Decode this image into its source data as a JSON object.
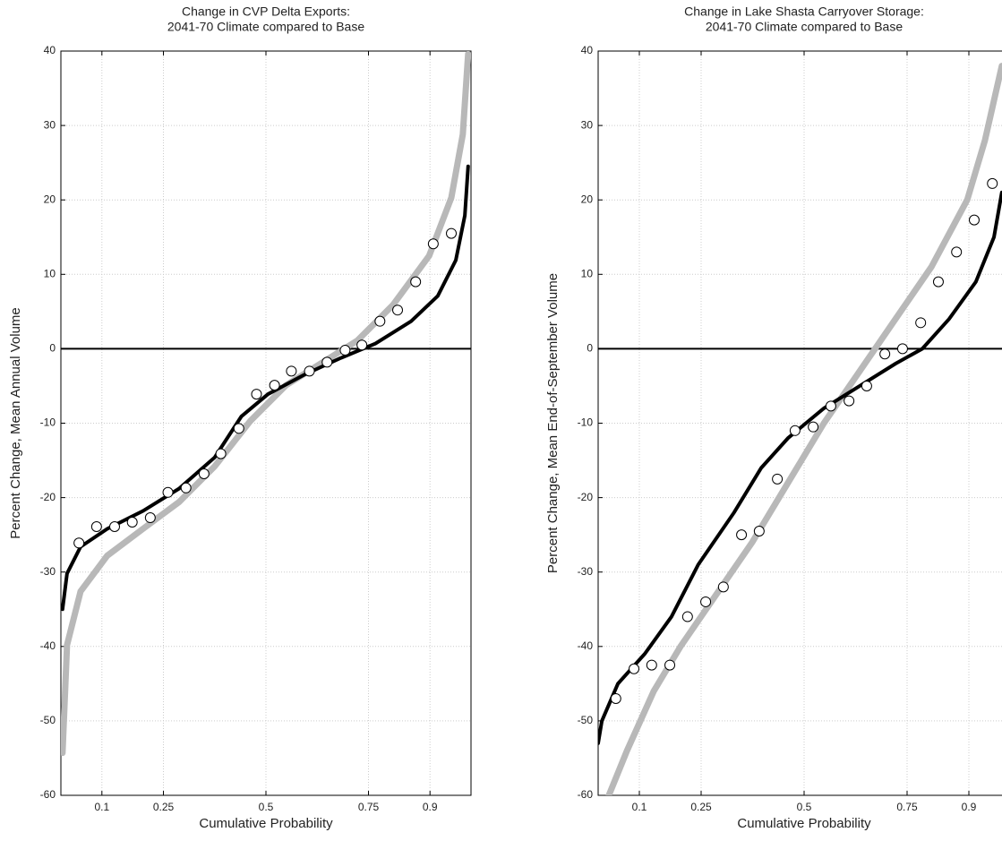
{
  "chart_data": [
    {
      "type": "line",
      "title": [
        "Change in CVP Delta Exports:",
        "2041-70 Climate compared to Base"
      ],
      "xlabel": "Cumulative Probability",
      "ylabel": "Percent Change, Mean Annual Volume",
      "xlim": [
        0,
        1
      ],
      "ylim": [
        -60,
        40
      ],
      "xticks": [
        0.1,
        0.25,
        0.5,
        0.75,
        0.9
      ],
      "yticks": [
        -60,
        -50,
        -40,
        -30,
        -20,
        -10,
        0,
        10,
        20,
        30,
        40
      ],
      "grid": true,
      "hline": 0,
      "series": [
        {
          "style": "line",
          "color": "#b8b8b8",
          "x": [
            0.004,
            0.015,
            0.048,
            0.113,
            0.2,
            0.288,
            0.375,
            0.462,
            0.549,
            0.636,
            0.723,
            0.81,
            0.898,
            0.952,
            0.98,
            0.993
          ],
          "values": [
            -54.3,
            -39.8,
            -32.6,
            -27.8,
            -24.2,
            -20.6,
            -15.8,
            -9.7,
            -4.9,
            -1.9,
            1.1,
            5.9,
            12.5,
            20.3,
            28.8,
            39.6
          ]
        },
        {
          "style": "line",
          "color": "#000000",
          "x": [
            0.004,
            0.015,
            0.048,
            0.113,
            0.2,
            0.288,
            0.375,
            0.44,
            0.505,
            0.593,
            0.68,
            0.767,
            0.854,
            0.919,
            0.963,
            0.985,
            0.993
          ],
          "values": [
            -35,
            -30.2,
            -26.6,
            -24.2,
            -21.8,
            -18.8,
            -14.6,
            -9.1,
            -6.1,
            -3.5,
            -1.3,
            0.7,
            3.7,
            7.1,
            11.9,
            17.9,
            24.5
          ]
        },
        {
          "style": "marker",
          "color": "#000000",
          "x": [
            0.044,
            0.087,
            0.131,
            0.174,
            0.218,
            0.261,
            0.305,
            0.349,
            0.39,
            0.434,
            0.477,
            0.521,
            0.562,
            0.606,
            0.649,
            0.693,
            0.734,
            0.778,
            0.821,
            0.865,
            0.908,
            0.952
          ],
          "values": [
            -26.1,
            -23.9,
            -23.9,
            -23.3,
            -22.7,
            -19.3,
            -18.7,
            -16.8,
            -14.1,
            -10.7,
            -6.1,
            -4.9,
            -3.0,
            -3.0,
            -1.8,
            -0.2,
            0.5,
            3.7,
            5.2,
            9.0,
            14.1,
            15.5
          ]
        }
      ]
    },
    {
      "type": "line",
      "title": [
        "Change in Lake Shasta Carryover Storage:",
        "2041-70 Climate compared to Base"
      ],
      "xlabel": "Cumulative Probability",
      "ylabel": "Percent Change, Mean End-of-September Volume",
      "xlim": [
        0,
        1
      ],
      "ylim": [
        -60,
        40
      ],
      "xticks": [
        0.1,
        0.25,
        0.5,
        0.75,
        0.9
      ],
      "yticks": [
        -60,
        -50,
        -40,
        -30,
        -20,
        -10,
        0,
        10,
        20,
        30,
        40
      ],
      "grid": true,
      "hline": 0,
      "series": [
        {
          "style": "line",
          "color": "#b8b8b8",
          "x": [
            0.026,
            0.07,
            0.135,
            0.2,
            0.287,
            0.374,
            0.461,
            0.548,
            0.635,
            0.722,
            0.809,
            0.896,
            0.939,
            0.98
          ],
          "values": [
            -60,
            -54,
            -46,
            -40,
            -33,
            -26,
            -18,
            -10,
            -3,
            4,
            11,
            20,
            28,
            38
          ]
        },
        {
          "style": "line",
          "color": "#000000",
          "x": [
            0,
            0.009,
            0.048,
            0.113,
            0.178,
            0.243,
            0.33,
            0.396,
            0.461,
            0.548,
            0.635,
            0.722,
            0.787,
            0.852,
            0.917,
            0.961,
            0.98
          ],
          "values": [
            -53,
            -50,
            -45,
            -41,
            -36,
            -29,
            -22,
            -16,
            -12,
            -8,
            -5,
            -2,
            0,
            4,
            9,
            15,
            21
          ]
        },
        {
          "style": "marker",
          "color": "#000000",
          "x": [
            0.043,
            0.087,
            0.13,
            0.174,
            0.217,
            0.261,
            0.304,
            0.348,
            0.391,
            0.435,
            0.478,
            0.522,
            0.565,
            0.609,
            0.652,
            0.696,
            0.739,
            0.783,
            0.826,
            0.87,
            0.913,
            0.957
          ],
          "values": [
            -47,
            -43,
            -42.5,
            -42.5,
            -36,
            -34,
            -32,
            -25,
            -24.5,
            -17.5,
            -11,
            -10.5,
            -7.7,
            -7,
            -5,
            -0.7,
            0,
            3.5,
            9,
            13,
            17.3,
            22.2
          ]
        }
      ]
    }
  ]
}
